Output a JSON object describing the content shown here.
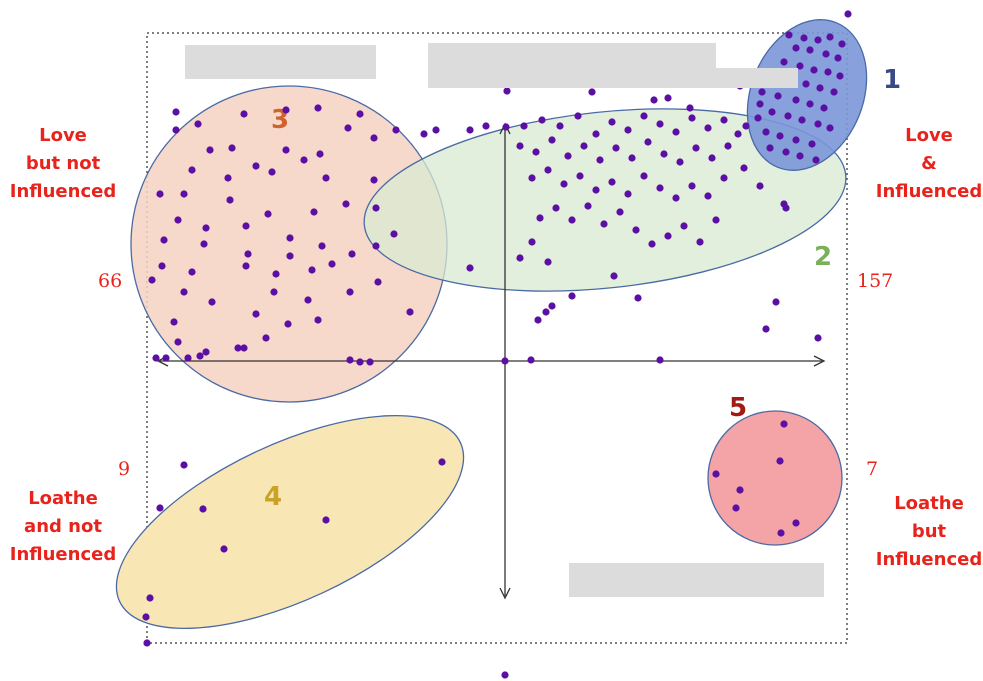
{
  "quadrant_labels": {
    "top_left": "Love\nbut not\nInfluenced",
    "top_right": "Love\n&\nInfluenced",
    "bottom_left": "Loathe\nand not\nInfluenced",
    "bottom_right": "Loathe\nbut\nInfluenced"
  },
  "counts": {
    "top_left": "66",
    "top_right": "157",
    "bottom_left": "9",
    "bottom_right": "7"
  },
  "clusters": [
    {
      "id": "1",
      "color": "#7b96d8",
      "label_color": "#3a4a86"
    },
    {
      "id": "2",
      "color": "#d8ead2",
      "label_color": "#7bb05a"
    },
    {
      "id": "3",
      "color": "#f6d2c2",
      "label_color": "#d0622c"
    },
    {
      "id": "4",
      "color": "#f9e6b5",
      "label_color": "#c9a227"
    },
    {
      "id": "5",
      "color": "#f4a3a6",
      "label_color": "#a11a14"
    }
  ],
  "colors": {
    "dot": "#5b0fa3",
    "label_red": "#e8231c",
    "bar_gray": "#dcdcdc",
    "axis": "#333333"
  }
}
